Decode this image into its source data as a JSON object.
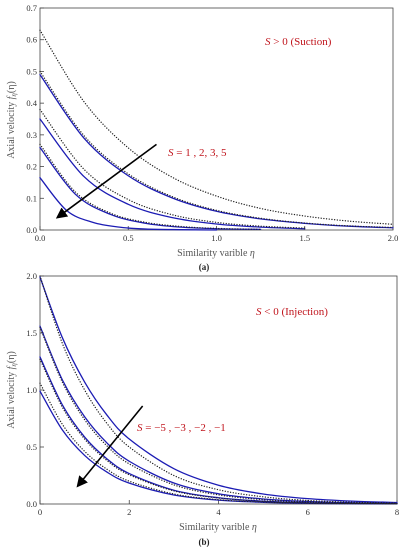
{
  "colors": {
    "solid": "#1c1cb4",
    "dotted": "#222222",
    "annotation": "#c0141c",
    "frame": "#444444",
    "arrow": "#000000"
  },
  "chart_data": [
    {
      "type": "line",
      "panel_label": "(a)",
      "title": "",
      "xlabel": "Similarity varible η",
      "ylabel": "Axial velocity f_η(η)",
      "ylabel_main": "Axial velocity ",
      "ylabel_func": "f",
      "ylabel_sub": "η",
      "ylabel_arg": "(η)",
      "xlim": [
        0,
        2.0
      ],
      "ylim": [
        0,
        0.7
      ],
      "xticks": [
        "0.0",
        "0.5",
        "1.0",
        "1.5",
        "2.0"
      ],
      "yticks": [
        "0.0",
        "0.1",
        "0.2",
        "0.3",
        "0.4",
        "0.5",
        "0.6",
        "0.7"
      ],
      "legend_note": "S > 0 (Suction)",
      "legend_note_parts": {
        "var": "S",
        "rest": " > 0 (Suction)"
      },
      "arrow_label": "S =  1 , 2,  3, 5",
      "arrow_label_parts": {
        "var": "S",
        "rest": " =  1 , 2,  3, 5"
      },
      "arrow": {
        "from": [
          0.66,
          0.27
        ],
        "to": [
          0.1,
          0.04
        ]
      },
      "series": [
        {
          "style": "solid",
          "x": [
            0,
            0.25,
            0.5,
            0.75,
            1.0,
            1.25,
            1.5,
            1.75,
            2.0
          ],
          "y": [
            0.49,
            0.289,
            0.171,
            0.101,
            0.059,
            0.035,
            0.021,
            0.012,
            0.007
          ]
        },
        {
          "style": "solid",
          "x": [
            0,
            0.25,
            0.5,
            0.75,
            1.0,
            1.25,
            1.5
          ],
          "y": [
            0.35,
            0.168,
            0.081,
            0.039,
            0.019,
            0.009,
            0.004
          ]
        },
        {
          "style": "solid",
          "x": [
            0,
            0.2,
            0.4,
            0.6,
            0.8,
            1.0,
            1.25
          ],
          "y": [
            0.26,
            0.113,
            0.049,
            0.021,
            0.009,
            0.004,
            0.002
          ]
        },
        {
          "style": "solid",
          "x": [
            0,
            0.15,
            0.3,
            0.45,
            0.6,
            0.8,
            1.0
          ],
          "y": [
            0.165,
            0.062,
            0.024,
            0.009,
            0.003,
            0.001,
            0.0
          ]
        },
        {
          "style": "dotted",
          "x": [
            0,
            0.25,
            0.5,
            0.75,
            1.0,
            1.25,
            1.5,
            1.75,
            2.0
          ],
          "y": [
            0.63,
            0.404,
            0.259,
            0.166,
            0.107,
            0.068,
            0.044,
            0.028,
            0.018
          ]
        },
        {
          "style": "dotted",
          "x": [
            0,
            0.25,
            0.5,
            0.75,
            1.0,
            1.25,
            1.5,
            1.75,
            2.0
          ],
          "y": [
            0.5,
            0.297,
            0.177,
            0.105,
            0.062,
            0.037,
            0.022,
            0.013,
            0.008
          ]
        },
        {
          "style": "dotted",
          "x": [
            0,
            0.25,
            0.5,
            0.75,
            1.0,
            1.25,
            1.5
          ],
          "y": [
            0.38,
            0.191,
            0.096,
            0.048,
            0.024,
            0.012,
            0.006
          ]
        },
        {
          "style": "dotted",
          "x": [
            0,
            0.2,
            0.4,
            0.6,
            0.8,
            1.0,
            1.25
          ],
          "y": [
            0.27,
            0.12,
            0.053,
            0.024,
            0.011,
            0.005,
            0.002
          ]
        }
      ]
    },
    {
      "type": "line",
      "panel_label": "(b)",
      "title": "",
      "xlabel": "Similarity varible η",
      "ylabel": "Axial velocity f_η(η)",
      "ylabel_main": "Axial velocity ",
      "ylabel_func": "f",
      "ylabel_sub": "η",
      "ylabel_arg": "(η)",
      "xlim": [
        0,
        8
      ],
      "ylim": [
        0,
        2.0
      ],
      "xticks": [
        "0",
        "2",
        "4",
        "6",
        "8"
      ],
      "yticks": [
        "0.0",
        "0.5",
        "1.0",
        "1.5",
        "2.0"
      ],
      "legend_note": "S < 0 (Injection)",
      "legend_note_parts": {
        "var": "S",
        "rest": " < 0 (Injection)"
      },
      "arrow_label": "S =  −5 , −3 , −2 , −1",
      "arrow_label_parts": {
        "var": "S",
        "rest": " =  −5 , −3 , −2 , −1"
      },
      "arrow": {
        "from": [
          2.3,
          0.86
        ],
        "to": [
          0.85,
          0.16
        ]
      },
      "series": [
        {
          "style": "solid",
          "x": [
            0,
            0.5,
            1,
            1.5,
            2,
            3,
            4,
            5,
            6,
            7,
            8
          ],
          "y": [
            1.99,
            1.46,
            1.07,
            0.78,
            0.57,
            0.31,
            0.165,
            0.088,
            0.047,
            0.025,
            0.013
          ]
        },
        {
          "style": "solid",
          "x": [
            0,
            0.5,
            1,
            1.5,
            2,
            3,
            4,
            5,
            6,
            7,
            8
          ],
          "y": [
            1.56,
            1.09,
            0.765,
            0.536,
            0.375,
            0.184,
            0.09,
            0.044,
            0.022,
            0.011,
            0.005
          ]
        },
        {
          "style": "solid",
          "x": [
            0,
            0.5,
            1,
            1.5,
            2,
            3,
            4,
            5,
            6,
            7,
            8
          ],
          "y": [
            1.29,
            0.87,
            0.587,
            0.396,
            0.267,
            0.121,
            0.055,
            0.025,
            0.011,
            0.005,
            0.002
          ]
        },
        {
          "style": "solid",
          "x": [
            0,
            0.5,
            1,
            1.5,
            2,
            3,
            4,
            5,
            6,
            7,
            8
          ],
          "y": [
            0.99,
            0.65,
            0.426,
            0.28,
            0.183,
            0.079,
            0.034,
            0.015,
            0.006,
            0.003,
            0.001
          ]
        },
        {
          "style": "dotted",
          "x": [
            0,
            0.5,
            1,
            1.5,
            2,
            3,
            4,
            5,
            6,
            7,
            8
          ],
          "y": [
            2.0,
            1.41,
            1.0,
            0.707,
            0.5,
            0.25,
            0.125,
            0.063,
            0.031,
            0.016,
            0.008
          ]
        },
        {
          "style": "dotted",
          "x": [
            0,
            0.5,
            1,
            1.5,
            2,
            3,
            4,
            5,
            6,
            7,
            8
          ],
          "y": [
            1.55,
            1.07,
            0.74,
            0.51,
            0.352,
            0.168,
            0.08,
            0.038,
            0.018,
            0.009,
            0.004
          ]
        },
        {
          "style": "dotted",
          "x": [
            0,
            0.5,
            1,
            1.5,
            2,
            3,
            4,
            5,
            6,
            7,
            8
          ],
          "y": [
            1.27,
            0.85,
            0.57,
            0.382,
            0.256,
            0.115,
            0.052,
            0.023,
            0.01,
            0.005,
            0.002
          ]
        },
        {
          "style": "dotted",
          "x": [
            0,
            0.5,
            1,
            1.5,
            2,
            3,
            4,
            5,
            6,
            7,
            8
          ],
          "y": [
            1.06,
            0.7,
            0.462,
            0.305,
            0.2,
            0.088,
            0.038,
            0.017,
            0.007,
            0.003,
            0.001
          ]
        }
      ]
    }
  ]
}
